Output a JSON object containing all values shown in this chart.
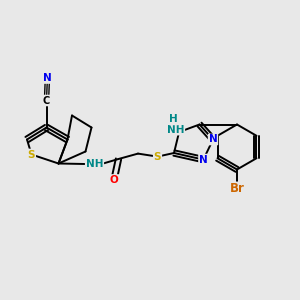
{
  "bg_color": "#e8e8e8",
  "bond_color": "#000000",
  "bond_width": 1.4,
  "dbo": 0.012,
  "atom_colors": {
    "N": "#0000ee",
    "S": "#ccaa00",
    "O": "#ff0000",
    "Br": "#cc6600",
    "C": "#000000",
    "H": "#008888"
  },
  "fs": 7.5
}
